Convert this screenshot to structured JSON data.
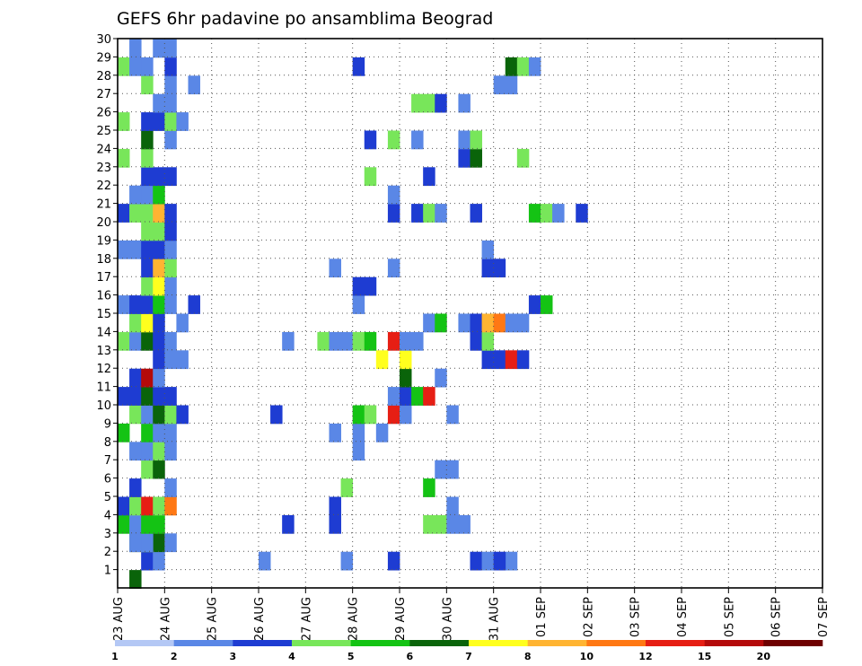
{
  "chart_data": {
    "type": "heatmap",
    "title": "GEFS 6hr padavine po ansamblima Beograd",
    "xlabel": "",
    "ylabel": "",
    "y_tick_labels": [
      "1",
      "2",
      "3",
      "4",
      "5",
      "6",
      "7",
      "8",
      "9",
      "10",
      "11",
      "12",
      "13",
      "14",
      "15",
      "16",
      "17",
      "18",
      "19",
      "20",
      "21",
      "22",
      "23",
      "24",
      "25",
      "26",
      "27",
      "28",
      "29",
      "30"
    ],
    "y_range": [
      0,
      30
    ],
    "x_tick_labels": [
      "23 AUG",
      "24 AUG",
      "25 AUG",
      "26 AUG",
      "27 AUG",
      "28 AUG",
      "29 AUG",
      "30 AUG",
      "31 AUG",
      "01 SEP",
      "02 SEP",
      "03 SEP",
      "04 SEP",
      "05 SEP",
      "06 SEP",
      "07 SEP"
    ],
    "time_step_hours": 6,
    "time_steps": 61,
    "grid": true,
    "legend_placement": "bottom",
    "legend": {
      "labels": [
        "1",
        "2",
        "3",
        "4",
        "5",
        "6",
        "7",
        "8",
        "10",
        "12",
        "15",
        "20"
      ],
      "colors": [
        "#b4c8f5",
        "#5a87e6",
        "#1e3cd2",
        "#78e65a",
        "#14c314",
        "#0a640a",
        "#ffff1e",
        "#ffb432",
        "#ff7814",
        "#e61e14",
        "#b40a0a",
        "#6e0000"
      ]
    },
    "cells": [
      [
        0,
        1,
        5
      ],
      [
        1,
        2,
        2
      ],
      [
        1,
        3,
        1
      ],
      [
        1,
        12,
        1
      ],
      [
        1,
        19,
        1
      ],
      [
        1,
        23,
        2
      ],
      [
        1,
        30,
        2
      ],
      [
        1,
        31,
        1
      ],
      [
        1,
        33,
        1
      ],
      [
        1,
        32,
        2
      ],
      [
        2,
        1,
        2
      ],
      [
        2,
        2,
        4
      ],
      [
        2,
        3,
        1
      ],
      [
        2,
        1,
        6
      ],
      [
        2,
        2,
        6
      ],
      [
        2,
        3,
        5
      ],
      [
        2,
        4,
        1
      ],
      [
        2,
        1,
        1
      ],
      [
        2,
        2,
        1
      ],
      [
        3,
        0,
        4
      ],
      [
        3,
        1,
        1
      ],
      [
        3,
        2,
        1
      ],
      [
        3,
        2,
        4
      ],
      [
        3,
        3,
        4
      ],
      [
        3,
        14,
        2
      ],
      [
        3,
        26,
        3
      ],
      [
        3,
        27,
        3
      ],
      [
        3,
        28,
        1
      ],
      [
        3,
        18,
        2
      ],
      [
        3,
        29,
        1
      ],
      [
        4,
        0,
        2
      ],
      [
        4,
        1,
        3
      ],
      [
        4,
        2,
        9
      ],
      [
        4,
        3,
        3
      ],
      [
        4,
        18,
        2
      ],
      [
        4,
        4,
        8
      ],
      [
        4,
        28,
        1
      ],
      [
        5,
        19,
        3
      ],
      [
        5,
        26,
        4
      ],
      [
        5,
        4,
        1
      ],
      [
        5,
        1,
        2
      ],
      [
        6,
        2,
        3
      ],
      [
        6,
        3,
        5
      ],
      [
        6,
        27,
        1
      ],
      [
        6,
        28,
        1
      ],
      [
        7,
        1,
        1
      ],
      [
        7,
        2,
        1
      ],
      [
        7,
        3,
        3
      ],
      [
        7,
        4,
        1
      ],
      [
        7,
        20,
        1
      ],
      [
        8,
        0,
        4
      ],
      [
        8,
        2,
        4
      ],
      [
        8,
        3,
        1
      ],
      [
        8,
        4,
        1
      ],
      [
        8,
        18,
        1
      ],
      [
        8,
        20,
        1
      ],
      [
        8,
        22,
        1
      ],
      [
        9,
        1,
        3
      ],
      [
        9,
        2,
        1
      ],
      [
        9,
        3,
        5
      ],
      [
        9,
        4,
        3
      ],
      [
        9,
        5,
        2
      ],
      [
        9,
        13,
        2
      ],
      [
        9,
        20,
        4
      ],
      [
        9,
        21,
        3
      ],
      [
        9,
        23,
        9
      ],
      [
        9,
        24,
        1
      ],
      [
        9,
        28,
        1
      ],
      [
        10,
        0,
        2
      ],
      [
        10,
        1,
        2
      ],
      [
        10,
        2,
        5
      ],
      [
        10,
        3,
        2
      ],
      [
        10,
        4,
        2
      ],
      [
        10,
        23,
        1
      ],
      [
        10,
        24,
        2
      ],
      [
        10,
        25,
        4
      ],
      [
        10,
        26,
        9
      ],
      [
        11,
        1,
        2
      ],
      [
        11,
        2,
        10
      ],
      [
        11,
        3,
        1
      ],
      [
        11,
        24,
        5
      ],
      [
        11,
        27,
        1
      ],
      [
        12,
        3,
        2
      ],
      [
        12,
        4,
        1
      ],
      [
        12,
        5,
        1
      ],
      [
        12,
        22,
        6
      ],
      [
        12,
        24,
        6
      ],
      [
        12,
        31,
        2
      ],
      [
        12,
        32,
        2
      ],
      [
        12,
        33,
        9
      ],
      [
        12,
        34,
        2
      ],
      [
        13,
        0,
        3
      ],
      [
        13,
        1,
        1
      ],
      [
        13,
        2,
        5
      ],
      [
        13,
        3,
        2
      ],
      [
        13,
        4,
        1
      ],
      [
        13,
        14,
        1
      ],
      [
        13,
        17,
        3
      ],
      [
        13,
        18,
        1
      ],
      [
        13,
        19,
        1
      ],
      [
        13,
        20,
        3
      ],
      [
        13,
        21,
        4
      ],
      [
        13,
        23,
        9
      ],
      [
        13,
        24,
        1
      ],
      [
        13,
        25,
        1
      ],
      [
        13,
        30,
        2
      ],
      [
        13,
        31,
        3
      ],
      [
        14,
        1,
        3
      ],
      [
        14,
        2,
        6
      ],
      [
        14,
        3,
        2
      ],
      [
        14,
        5,
        1
      ],
      [
        14,
        26,
        1
      ],
      [
        14,
        27,
        4
      ],
      [
        14,
        29,
        1
      ],
      [
        14,
        30,
        2
      ],
      [
        14,
        31,
        7
      ],
      [
        14,
        32,
        8
      ],
      [
        14,
        33,
        1
      ],
      [
        14,
        34,
        1
      ],
      [
        15,
        0,
        1
      ],
      [
        15,
        1,
        2
      ],
      [
        15,
        2,
        2
      ],
      [
        15,
        3,
        4
      ],
      [
        15,
        4,
        1
      ],
      [
        15,
        6,
        2
      ],
      [
        15,
        20,
        1
      ],
      [
        15,
        35,
        2
      ],
      [
        15,
        36,
        4
      ],
      [
        16,
        2,
        3
      ],
      [
        16,
        3,
        6
      ],
      [
        16,
        4,
        1
      ],
      [
        16,
        20,
        2
      ],
      [
        16,
        21,
        2
      ],
      [
        17,
        2,
        2
      ],
      [
        17,
        3,
        7
      ],
      [
        17,
        4,
        3
      ],
      [
        17,
        18,
        1
      ],
      [
        17,
        23,
        1
      ],
      [
        17,
        31,
        2
      ],
      [
        17,
        32,
        2
      ],
      [
        18,
        0,
        1
      ],
      [
        18,
        1,
        1
      ],
      [
        18,
        2,
        2
      ],
      [
        18,
        3,
        2
      ],
      [
        18,
        4,
        1
      ],
      [
        18,
        31,
        1
      ],
      [
        19,
        2,
        3
      ],
      [
        19,
        3,
        3
      ],
      [
        19,
        4,
        2
      ],
      [
        20,
        0,
        2
      ],
      [
        20,
        1,
        3
      ],
      [
        20,
        2,
        3
      ],
      [
        20,
        3,
        7
      ],
      [
        20,
        4,
        2
      ],
      [
        20,
        23,
        2
      ],
      [
        20,
        25,
        2
      ],
      [
        20,
        26,
        3
      ],
      [
        20,
        27,
        1
      ],
      [
        20,
        30,
        2
      ],
      [
        20,
        35,
        4
      ],
      [
        20,
        36,
        3
      ],
      [
        20,
        37,
        1
      ],
      [
        20,
        39,
        2
      ],
      [
        21,
        1,
        1
      ],
      [
        21,
        2,
        1
      ],
      [
        21,
        3,
        4
      ],
      [
        21,
        23,
        1
      ],
      [
        22,
        2,
        2
      ],
      [
        22,
        3,
        2
      ],
      [
        22,
        4,
        2
      ],
      [
        22,
        21,
        3
      ],
      [
        22,
        26,
        2
      ],
      [
        23,
        0,
        3
      ],
      [
        23,
        2,
        3
      ],
      [
        23,
        29,
        2
      ],
      [
        23,
        30,
        5
      ],
      [
        23,
        34,
        3
      ],
      [
        24,
        2,
        5
      ],
      [
        24,
        4,
        1
      ],
      [
        24,
        21,
        2
      ],
      [
        24,
        23,
        3
      ],
      [
        24,
        25,
        1
      ],
      [
        24,
        29,
        1
      ],
      [
        24,
        30,
        3
      ],
      [
        25,
        0,
        3
      ],
      [
        25,
        2,
        2
      ],
      [
        25,
        3,
        2
      ],
      [
        25,
        4,
        3
      ],
      [
        25,
        5,
        1
      ],
      [
        26,
        3,
        1
      ],
      [
        26,
        4,
        1
      ],
      [
        26,
        25,
        3
      ],
      [
        26,
        26,
        3
      ],
      [
        26,
        27,
        2
      ],
      [
        26,
        29,
        1
      ],
      [
        27,
        2,
        3
      ],
      [
        27,
        4,
        1
      ],
      [
        27,
        6,
        1
      ],
      [
        27,
        32,
        1
      ],
      [
        27,
        33,
        1
      ],
      [
        28,
        0,
        3
      ],
      [
        28,
        1,
        1
      ],
      [
        28,
        2,
        1
      ],
      [
        28,
        4,
        2
      ],
      [
        28,
        20,
        2
      ],
      [
        28,
        33,
        5
      ],
      [
        28,
        34,
        3
      ],
      [
        28,
        35,
        1
      ],
      [
        29,
        1,
        1
      ],
      [
        29,
        3,
        1
      ],
      [
        29,
        4,
        1
      ]
    ]
  }
}
